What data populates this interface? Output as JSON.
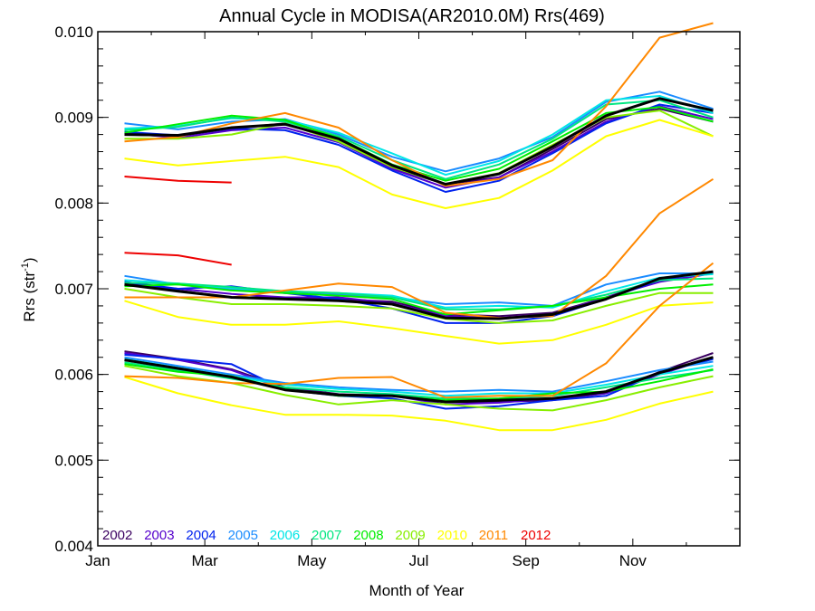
{
  "chart_data": {
    "type": "line",
    "title": "Annual Cycle in MODISA(AR2010.0M) Rrs(469)",
    "xlabel": "Month of Year",
    "ylabel_main": "Rrs (str",
    "ylabel_sup": "-1",
    "ylabel_close": ")",
    "xlim": [
      0,
      12
    ],
    "ylim": [
      0.004,
      0.01
    ],
    "x_ticks": [
      {
        "value": 0,
        "label": "Jan"
      },
      {
        "value": 2,
        "label": "Mar"
      },
      {
        "value": 4,
        "label": "May"
      },
      {
        "value": 6,
        "label": "Jul"
      },
      {
        "value": 8,
        "label": "Sep"
      },
      {
        "value": 10,
        "label": "Nov"
      }
    ],
    "y_ticks": [
      {
        "value": 0.004,
        "label": "0.004"
      },
      {
        "value": 0.005,
        "label": "0.005"
      },
      {
        "value": 0.006,
        "label": "0.006"
      },
      {
        "value": 0.007,
        "label": "0.007"
      },
      {
        "value": 0.008,
        "label": "0.008"
      },
      {
        "value": 0.009,
        "label": "0.009"
      },
      {
        "value": 0.01,
        "label": "0.010"
      }
    ],
    "x": [
      0.5,
      1.5,
      2.5,
      3.5,
      4.5,
      5.5,
      6.5,
      7.5,
      8.5,
      9.5,
      10.5,
      11.5
    ],
    "grid": false,
    "legend_position": "bottom-left",
    "legend": [
      {
        "name": "2002",
        "color": "#3a0060"
      },
      {
        "name": "2003",
        "color": "#5500cc"
      },
      {
        "name": "2004",
        "color": "#0022ee"
      },
      {
        "name": "2005",
        "color": "#1a8cff"
      },
      {
        "name": "2006",
        "color": "#00e6e6"
      },
      {
        "name": "2007",
        "color": "#00e680"
      },
      {
        "name": "2008",
        "color": "#00ee00"
      },
      {
        "name": "2009",
        "color": "#88ee00"
      },
      {
        "name": "2010",
        "color": "#ffff00"
      },
      {
        "name": "2011",
        "color": "#ff8800"
      },
      {
        "name": "2012",
        "color": "#ee0000"
      }
    ],
    "mean_color": "#000000",
    "groups": [
      {
        "series": [
          {
            "name": "2002",
            "values": [
              0.0088,
              0.00878,
              0.00887,
              0.00893,
              0.00872,
              0.00841,
              0.00822,
              0.0083,
              0.00863,
              0.00898,
              0.0091,
              0.00895
            ]
          },
          {
            "name": "2003",
            "values": [
              0.00882,
              0.00876,
              0.00885,
              0.00888,
              0.00871,
              0.0084,
              0.00818,
              0.0083,
              0.0086,
              0.00895,
              0.00913,
              0.00898
            ]
          },
          {
            "name": "2004",
            "values": [
              0.00883,
              0.00879,
              0.00887,
              0.00885,
              0.00868,
              0.00838,
              0.00813,
              0.00826,
              0.00858,
              0.00893,
              0.00915,
              0.00905
            ]
          },
          {
            "name": "2005",
            "values": [
              0.00893,
              0.00886,
              0.00895,
              0.00898,
              0.0088,
              0.00854,
              0.00837,
              0.00852,
              0.00877,
              0.00918,
              0.0093,
              0.0091
            ]
          },
          {
            "name": "2006",
            "values": [
              0.00887,
              0.0089,
              0.00899,
              0.00897,
              0.00882,
              0.00858,
              0.00833,
              0.00849,
              0.0088,
              0.0092,
              0.00925,
              0.00905
            ]
          },
          {
            "name": "2007",
            "values": [
              0.00885,
              0.00889,
              0.009,
              0.00895,
              0.00878,
              0.0085,
              0.00828,
              0.00845,
              0.00875,
              0.00915,
              0.0092,
              0.009
            ]
          },
          {
            "name": "2008",
            "values": [
              0.00882,
              0.00892,
              0.00902,
              0.00897,
              0.00876,
              0.00845,
              0.00826,
              0.0084,
              0.00872,
              0.00905,
              0.00912,
              0.00895
            ]
          },
          {
            "name": "2009",
            "values": [
              0.00875,
              0.00875,
              0.0088,
              0.00893,
              0.00872,
              0.00842,
              0.00822,
              0.00835,
              0.00868,
              0.009,
              0.00908,
              0.00878
            ]
          },
          {
            "name": "2010",
            "values": [
              0.00852,
              0.00844,
              0.00849,
              0.00854,
              0.00842,
              0.0081,
              0.00794,
              0.00806,
              0.00838,
              0.00878,
              0.00897,
              0.00878
            ]
          },
          {
            "name": "2011",
            "values": [
              0.00872,
              0.00877,
              0.00893,
              0.00905,
              0.00888,
              0.0085,
              0.0082,
              0.00828,
              0.0085,
              0.00913,
              0.00993,
              0.0101
            ]
          },
          {
            "name": "2012",
            "values": [
              0.00831,
              0.00826,
              0.00824,
              null,
              null,
              null,
              null,
              null,
              null,
              null,
              null,
              null
            ]
          }
        ],
        "mean": [
          0.0088,
          0.00879,
          0.00888,
          0.00892,
          0.00875,
          0.00844,
          0.00822,
          0.00834,
          0.00866,
          0.00902,
          0.00922,
          0.00908
        ]
      },
      {
        "series": [
          {
            "name": "2002",
            "values": [
              0.00707,
              0.00698,
              0.0069,
              0.0069,
              0.00688,
              0.00685,
              0.0067,
              0.00668,
              0.00672,
              0.0069,
              0.0071,
              0.00718
            ]
          },
          {
            "name": "2003",
            "values": [
              0.00705,
              0.007,
              0.00694,
              0.0069,
              0.0069,
              0.00683,
              0.00668,
              0.00666,
              0.0067,
              0.0069,
              0.00708,
              0.00718
            ]
          },
          {
            "name": "2004",
            "values": [
              0.00708,
              0.007,
              0.00703,
              0.00695,
              0.00688,
              0.00677,
              0.0066,
              0.0066,
              0.00668,
              0.00688,
              0.0071,
              0.0072
            ]
          },
          {
            "name": "2005",
            "values": [
              0.00715,
              0.00705,
              0.007,
              0.00695,
              0.00693,
              0.0069,
              0.00682,
              0.00684,
              0.0068,
              0.00705,
              0.00718,
              0.00718
            ]
          },
          {
            "name": "2006",
            "values": [
              0.0071,
              0.00706,
              0.00701,
              0.00697,
              0.00695,
              0.00692,
              0.00678,
              0.0068,
              0.00678,
              0.00697,
              0.00713,
              0.00717
            ]
          },
          {
            "name": "2007",
            "values": [
              0.00707,
              0.00706,
              0.00702,
              0.00697,
              0.00695,
              0.0069,
              0.00676,
              0.00676,
              0.0068,
              0.00693,
              0.0071,
              0.00712
            ]
          },
          {
            "name": "2008",
            "values": [
              0.00703,
              0.00705,
              0.00698,
              0.00695,
              0.00692,
              0.00688,
              0.0067,
              0.00675,
              0.0068,
              0.0069,
              0.007,
              0.00705
            ]
          },
          {
            "name": "2009",
            "values": [
              0.007,
              0.0069,
              0.00682,
              0.00682,
              0.0068,
              0.00677,
              0.00665,
              0.0066,
              0.00663,
              0.0068,
              0.00695,
              0.00695
            ]
          },
          {
            "name": "2010",
            "values": [
              0.00686,
              0.00667,
              0.00658,
              0.00658,
              0.00662,
              0.00654,
              0.00645,
              0.00636,
              0.0064,
              0.00658,
              0.0068,
              0.00684
            ]
          },
          {
            "name": "2011",
            "values": [
              0.0069,
              0.0069,
              0.0069,
              0.00698,
              0.00706,
              0.00702,
              0.00672,
              0.00666,
              0.00668,
              0.00715,
              0.00788,
              0.00828
            ]
          },
          {
            "name": "2012",
            "values": [
              0.00742,
              0.00739,
              0.00728,
              null,
              null,
              null,
              null,
              null,
              null,
              null,
              null,
              null
            ]
          }
        ],
        "mean": [
          0.00705,
          0.00697,
          0.0069,
          0.00688,
          0.00686,
          0.00682,
          0.00666,
          0.00665,
          0.0067,
          0.00688,
          0.00712,
          0.0072
        ]
      },
      {
        "series": [
          {
            "name": "2002",
            "values": [
              0.00627,
              0.00618,
              0.00606,
              0.00585,
              0.00577,
              0.00575,
              0.00568,
              0.00568,
              0.0057,
              0.00578,
              0.00603,
              0.00625
            ]
          },
          {
            "name": "2003",
            "values": [
              0.00625,
              0.00617,
              0.00605,
              0.00583,
              0.00576,
              0.00575,
              0.00565,
              0.00567,
              0.00572,
              0.00578,
              0.006,
              0.0062
            ]
          },
          {
            "name": "2004",
            "values": [
              0.00623,
              0.00618,
              0.00612,
              0.00582,
              0.00575,
              0.00572,
              0.0056,
              0.00563,
              0.0057,
              0.00575,
              0.00602,
              0.00618
            ]
          },
          {
            "name": "2005",
            "values": [
              0.0062,
              0.0061,
              0.006,
              0.0059,
              0.00585,
              0.00582,
              0.0058,
              0.00582,
              0.0058,
              0.00592,
              0.00605,
              0.00615
            ]
          },
          {
            "name": "2006",
            "values": [
              0.00618,
              0.00608,
              0.00598,
              0.00588,
              0.00583,
              0.0058,
              0.00575,
              0.00578,
              0.00578,
              0.00588,
              0.006,
              0.0061
            ]
          },
          {
            "name": "2007",
            "values": [
              0.00614,
              0.00605,
              0.00595,
              0.00585,
              0.0058,
              0.00577,
              0.00572,
              0.00572,
              0.00575,
              0.00585,
              0.00596,
              0.00605
            ]
          },
          {
            "name": "2008",
            "values": [
              0.00612,
              0.00603,
              0.00598,
              0.00583,
              0.00575,
              0.00575,
              0.0057,
              0.00572,
              0.00578,
              0.0058,
              0.00592,
              0.00606
            ]
          },
          {
            "name": "2009",
            "values": [
              0.0061,
              0.00598,
              0.0059,
              0.00576,
              0.00565,
              0.0057,
              0.00565,
              0.0056,
              0.00558,
              0.0057,
              0.00585,
              0.00598
            ]
          },
          {
            "name": "2010",
            "values": [
              0.00597,
              0.00578,
              0.00564,
              0.00553,
              0.00553,
              0.00552,
              0.00546,
              0.00535,
              0.00535,
              0.00547,
              0.00566,
              0.0058
            ]
          },
          {
            "name": "2011",
            "values": [
              0.00598,
              0.00596,
              0.0059,
              0.00589,
              0.00596,
              0.00597,
              0.00573,
              0.00575,
              0.00575,
              0.00613,
              0.0068,
              0.0073
            ]
          },
          {
            "name": "2012",
            "values": [
              null,
              null,
              null,
              null,
              null,
              null,
              null,
              null,
              null,
              null,
              null,
              null
            ]
          }
        ],
        "mean": [
          0.00617,
          0.00607,
          0.00597,
          0.00582,
          0.00576,
          0.00575,
          0.00568,
          0.0057,
          0.00572,
          0.0058,
          0.00602,
          0.0062
        ]
      }
    ]
  }
}
